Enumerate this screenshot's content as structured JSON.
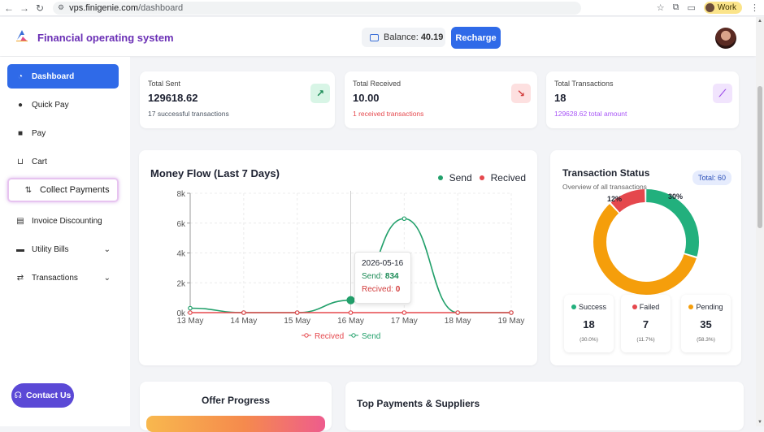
{
  "browser": {
    "url_host": "vps.finigenie.com",
    "url_path": "/dashboard",
    "profile_label": "Work"
  },
  "header": {
    "app_title": "Financial operating system",
    "balance_label": "Balance:",
    "balance_value": "40.19",
    "recharge_label": "Recharge"
  },
  "sidebar": {
    "items": [
      {
        "label": "Dashboard",
        "icon": "dashboard-icon"
      },
      {
        "label": "Quick Pay",
        "icon": "user-icon"
      },
      {
        "label": "Pay",
        "icon": "truck-icon"
      },
      {
        "label": "Cart",
        "icon": "cart-icon"
      },
      {
        "label": "Collect Payments",
        "icon": "collect-icon"
      },
      {
        "label": "Invoice Discounting",
        "icon": "invoice-icon"
      },
      {
        "label": "Utility Bills",
        "icon": "bill-icon"
      },
      {
        "label": "Transactions",
        "icon": "transfer-icon"
      }
    ],
    "contact_label": "Contact Us"
  },
  "stats": [
    {
      "label": "Total Sent",
      "value": "129618.62",
      "sub": "17 successful transactions",
      "icon": "arrow-up-right-icon",
      "accent": "#22a06b"
    },
    {
      "label": "Total Received",
      "value": "10.00",
      "sub": "1 received transactions",
      "icon": "arrow-down-right-icon",
      "accent": "#e5484d"
    },
    {
      "label": "Total Transactions",
      "value": "18",
      "sub": "129628.62 total amount",
      "icon": "chart-line-icon",
      "accent": "#a855f7"
    }
  ],
  "money_flow": {
    "title": "Money Flow (Last 7 Days)",
    "legend_send": "Send",
    "legend_received": "Recived",
    "tooltip": {
      "date": "2026-05-16",
      "send_label": "Send:",
      "send_value": "834",
      "received_label": "Recived:",
      "received_value": "0"
    }
  },
  "chart_data": {
    "type": "line",
    "categories": [
      "13 May",
      "14 May",
      "15 May",
      "16 May",
      "17 May",
      "18 May",
      "19 May"
    ],
    "series": [
      {
        "name": "Send",
        "values": [
          300,
          0,
          0,
          834,
          6300,
          0,
          0
        ],
        "color": "#22a06b"
      },
      {
        "name": "Recived",
        "values": [
          0,
          0,
          0,
          0,
          0,
          0,
          0
        ],
        "color": "#e5484d"
      }
    ],
    "yticks": [
      "0k",
      "2k",
      "4k",
      "6k",
      "8k"
    ],
    "ylim": [
      0,
      8000
    ],
    "grid": true,
    "legend": "top-right and bottom"
  },
  "status": {
    "title": "Transaction Status",
    "subtitle": "Overview of all transactions",
    "total_label": "Total: 60",
    "pct_failed": "12%",
    "pct_success": "30%",
    "cards": [
      {
        "label": "Success",
        "value": "18",
        "pct": "(30.0%)",
        "color": "#22b07d"
      },
      {
        "label": "Failed",
        "value": "7",
        "pct": "(11.7%)",
        "color": "#e5484d"
      },
      {
        "label": "Pending",
        "value": "35",
        "pct": "(58.3%)",
        "color": "#f59e0b"
      }
    ],
    "donut": [
      {
        "name": "Success",
        "value": 18,
        "color": "#22b07d"
      },
      {
        "name": "Failed",
        "value": 7,
        "color": "#e5484d"
      },
      {
        "name": "Pending",
        "value": 35,
        "color": "#f59e0b"
      }
    ]
  },
  "offer": {
    "title": "Offer Progress"
  },
  "top_payments": {
    "title": "Top Payments & Suppliers"
  }
}
